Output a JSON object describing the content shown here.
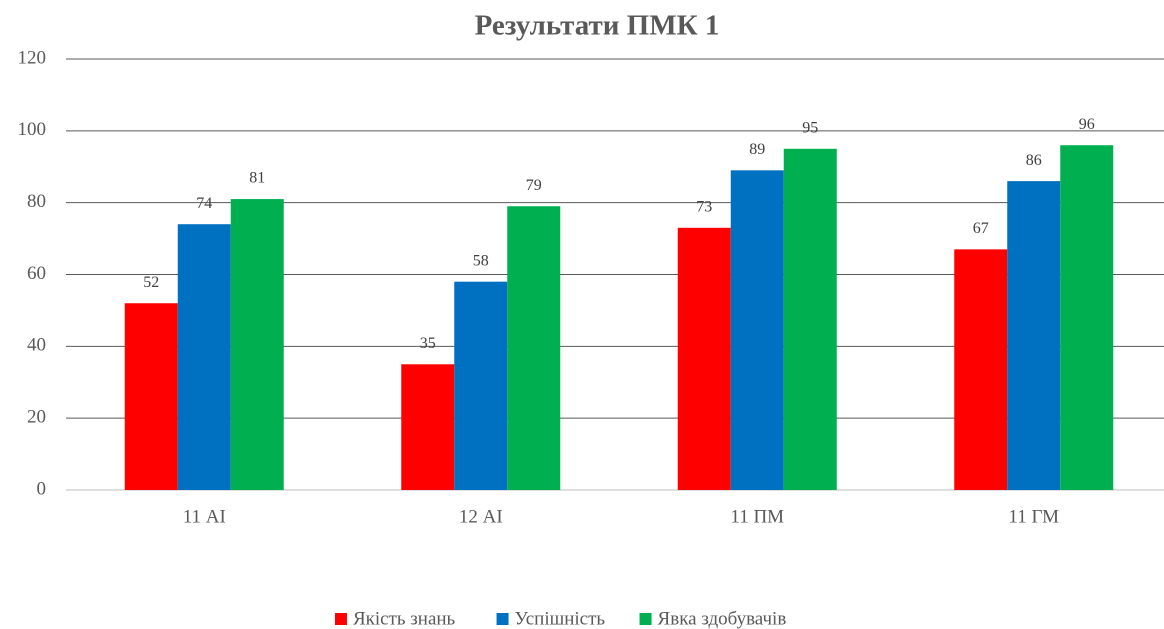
{
  "chart_data": {
    "type": "bar",
    "title": "Результати ПМК 1",
    "categories": [
      "11 АІ",
      "12 АІ",
      "11 ПМ",
      "11 ГМ"
    ],
    "series": [
      {
        "name": "Якість знань",
        "color": "#ff0000",
        "values": [
          52,
          35,
          73,
          67
        ]
      },
      {
        "name": "Успішність",
        "color": "#0070c0",
        "values": [
          74,
          58,
          89,
          86
        ]
      },
      {
        "name": "Явка здобувачів",
        "color": "#00b050",
        "values": [
          81,
          79,
          95,
          96
        ]
      }
    ],
    "ylim": [
      0,
      120
    ],
    "yticks": [
      0,
      20,
      40,
      60,
      80,
      100,
      120
    ],
    "grid": true,
    "legend": "bottom"
  }
}
